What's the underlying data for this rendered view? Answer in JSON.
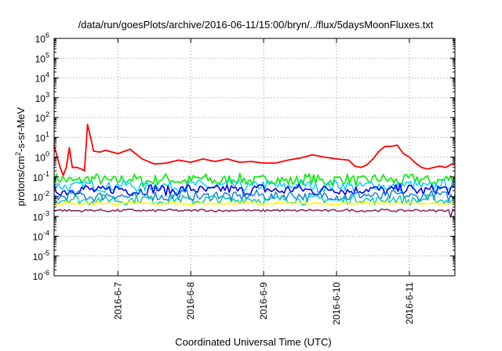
{
  "chart_data": {
    "type": "line",
    "title": "/data/run/goesPlots/archive/2016-06-11/15:00/bryn/../flux/5daysMoonFluxes.txt",
    "xlabel": "Coordinated Universal Time (UTC)",
    "ylabel": {
      "prefix": "protons/cm",
      "sup": "2",
      "suffix": "-s-sr-MeV"
    },
    "y_scale": "log",
    "ylim": [
      1e-06,
      1000000.0
    ],
    "y_ticks": [
      {
        "value": 1e-06,
        "base": "10",
        "exp": "-6"
      },
      {
        "value": 1e-05,
        "base": "10",
        "exp": "-5"
      },
      {
        "value": 0.0001,
        "base": "10",
        "exp": "-4"
      },
      {
        "value": 0.001,
        "base": "10",
        "exp": "-3"
      },
      {
        "value": 0.01,
        "base": "10",
        "exp": "-2"
      },
      {
        "value": 0.1,
        "base": "10",
        "exp": "-1"
      },
      {
        "value": 1,
        "base": "10",
        "exp": "0"
      },
      {
        "value": 10,
        "base": "10",
        "exp": "1"
      },
      {
        "value": 100,
        "base": "10",
        "exp": "2"
      },
      {
        "value": 1000,
        "base": "10",
        "exp": "3"
      },
      {
        "value": 10000,
        "base": "10",
        "exp": "4"
      },
      {
        "value": 100000,
        "base": "10",
        "exp": "5"
      },
      {
        "value": 1000000,
        "base": "10",
        "exp": "6"
      }
    ],
    "xlim": [
      "2016-06-06 03:00",
      "2016-06-11 15:00"
    ],
    "x_ticks": [
      {
        "value": "2016-06-07 00:00",
        "label": "2016-6-7"
      },
      {
        "value": "2016-06-08 00:00",
        "label": "2016-6-8"
      },
      {
        "value": "2016-06-09 00:00",
        "label": "2016-6-9"
      },
      {
        "value": "2016-06-10 00:00",
        "label": "2016-6-10"
      },
      {
        "value": "2016-06-11 00:00",
        "label": "2016-6-11"
      }
    ],
    "grid": true,
    "series": [
      {
        "color": "#ff0000",
        "width": 1.8,
        "points": [
          [
            "2016-06-06 03:00",
            4.0
          ],
          [
            "2016-06-06 04:00",
            1.0
          ],
          [
            "2016-06-06 05:00",
            0.3
          ],
          [
            "2016-06-06 06:00",
            0.12
          ],
          [
            "2016-06-06 07:00",
            0.3
          ],
          [
            "2016-06-06 08:00",
            3.0
          ],
          [
            "2016-06-06 09:00",
            0.3
          ],
          [
            "2016-06-06 10:30",
            0.3
          ],
          [
            "2016-06-06 12:00",
            0.25
          ],
          [
            "2016-06-06 13:00",
            0.2
          ],
          [
            "2016-06-06 14:00",
            45
          ],
          [
            "2016-06-06 15:00",
            10
          ],
          [
            "2016-06-06 16:00",
            2.0
          ],
          [
            "2016-06-06 18:00",
            1.8
          ],
          [
            "2016-06-06 20:00",
            2.2
          ],
          [
            "2016-06-07 00:00",
            1.5
          ],
          [
            "2016-06-07 04:00",
            2.5
          ],
          [
            "2016-06-07 08:00",
            0.8
          ],
          [
            "2016-06-07 12:00",
            0.45
          ],
          [
            "2016-06-07 16:00",
            0.5
          ],
          [
            "2016-06-07 20:00",
            0.7
          ],
          [
            "2016-06-08 00:00",
            0.55
          ],
          [
            "2016-06-08 04:00",
            0.8
          ],
          [
            "2016-06-08 08:00",
            0.6
          ],
          [
            "2016-06-08 12:00",
            0.8
          ],
          [
            "2016-06-08 16:00",
            0.55
          ],
          [
            "2016-06-08 20:00",
            0.6
          ],
          [
            "2016-06-09 00:00",
            0.5
          ],
          [
            "2016-06-09 04:00",
            0.5
          ],
          [
            "2016-06-09 08:00",
            0.7
          ],
          [
            "2016-06-09 12:00",
            0.9
          ],
          [
            "2016-06-09 16:00",
            1.3
          ],
          [
            "2016-06-09 20:00",
            1.0
          ],
          [
            "2016-06-10 00:00",
            0.8
          ],
          [
            "2016-06-10 04:00",
            0.7
          ],
          [
            "2016-06-10 06:00",
            0.35
          ],
          [
            "2016-06-10 08:00",
            0.3
          ],
          [
            "2016-06-10 10:00",
            0.4
          ],
          [
            "2016-06-10 12:00",
            0.8
          ],
          [
            "2016-06-10 14:00",
            2.0
          ],
          [
            "2016-06-10 16:00",
            3.5
          ],
          [
            "2016-06-10 18:00",
            3.5
          ],
          [
            "2016-06-10 20:00",
            4.0
          ],
          [
            "2016-06-10 22:00",
            1.5
          ],
          [
            "2016-06-11 00:00",
            1.0
          ],
          [
            "2016-06-11 02:00",
            0.5
          ],
          [
            "2016-06-11 04:00",
            0.3
          ],
          [
            "2016-06-11 06:00",
            0.25
          ],
          [
            "2016-06-11 08:00",
            0.3
          ],
          [
            "2016-06-11 10:00",
            0.35
          ],
          [
            "2016-06-11 12:00",
            0.3
          ],
          [
            "2016-06-11 14:00",
            0.45
          ],
          [
            "2016-06-11 15:00",
            0.5
          ]
        ]
      },
      {
        "color": "#00ee00",
        "width": 1.6,
        "level": 0.07,
        "spread": 0.28
      },
      {
        "color": "#00ccff",
        "width": 1.4,
        "level": 0.035,
        "spread": 0.26
      },
      {
        "color": "#0000ff",
        "width": 1.6,
        "level": 0.022,
        "spread": 0.26
      },
      {
        "color": "#0a7fe0",
        "width": 1.4,
        "level": 0.011,
        "spread": 0.25
      },
      {
        "color": "#00c9a7",
        "width": 1.4,
        "level": 0.007,
        "spread": 0.22
      },
      {
        "color": "#ffff00",
        "width": 1.6,
        "level": 0.0045,
        "spread": 0.05
      },
      {
        "color": "#8b2a6b",
        "width": 1.6,
        "level": 0.002,
        "spread": 0.06
      }
    ]
  }
}
